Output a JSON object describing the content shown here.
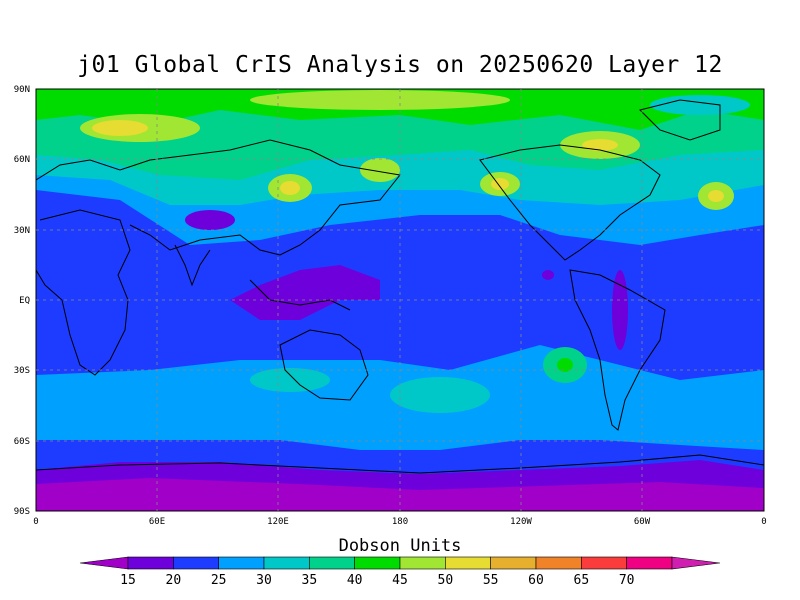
{
  "title": "j01 Global CrIS Analysis on 20250620 Layer 12",
  "map": {
    "lat_labels": [
      "90N",
      "60N",
      "30N",
      "EQ",
      "30S",
      "60S",
      "90S"
    ],
    "lon_labels": [
      "0",
      "60E",
      "120E",
      "180",
      "120W",
      "60W",
      "0"
    ],
    "projection": "cylindrical equidistant",
    "grid": "dashed",
    "field": "ozone column"
  },
  "colorbar": {
    "title": "Dobson Units",
    "labels": [
      "15",
      "20",
      "25",
      "30",
      "35",
      "40",
      "45",
      "50",
      "55",
      "60",
      "65",
      "70"
    ],
    "colors": [
      "#a000c8",
      "#6e00dc",
      "#1e3cff",
      "#00a0ff",
      "#00c8c8",
      "#00d28c",
      "#00dc00",
      "#a0e632",
      "#e6dc32",
      "#e6af2d",
      "#f08228",
      "#fa3c3c",
      "#f00082",
      "#d01eb0"
    ]
  }
}
